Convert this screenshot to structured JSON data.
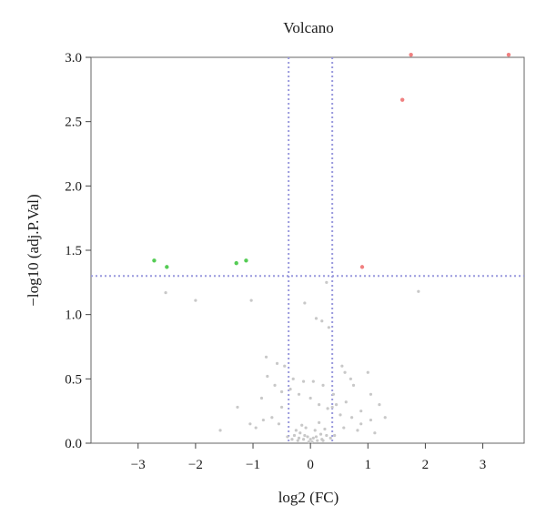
{
  "chart_data": {
    "type": "scatter",
    "title": "Volcano",
    "xlabel": "log2 (FC)",
    "ylabel": "−log10 (adj.P.Val)",
    "xlim": [
      -3.82,
      3.72
    ],
    "ylim": [
      0,
      3.0
    ],
    "x_ticks": [
      -3,
      -2,
      -1,
      0,
      1,
      2,
      3
    ],
    "x_tick_labels": [
      "−3",
      "−2",
      "−1",
      "0",
      "1",
      "2",
      "3"
    ],
    "y_ticks": [
      0,
      0.5,
      1.0,
      1.5,
      2.0,
      2.5,
      3.0
    ],
    "y_tick_labels": [
      "0.0",
      "0.5",
      "1.0",
      "1.5",
      "2.0",
      "2.5",
      "3.0"
    ],
    "thresholds": {
      "x": [
        -0.38,
        0.38
      ],
      "y": 1.3
    },
    "colors": {
      "up": "#f08080",
      "down": "#55cc55",
      "ns": "#c8c8c8",
      "threshold": "#9999dd"
    },
    "series": [
      {
        "group": "up",
        "x": [
          1.75,
          3.45,
          1.6,
          0.9
        ],
        "y": [
          3.02,
          3.02,
          2.67,
          1.37
        ]
      },
      {
        "group": "down",
        "x": [
          -2.72,
          -2.5,
          -1.29,
          -1.12
        ],
        "y": [
          1.42,
          1.37,
          1.4,
          1.42
        ]
      },
      {
        "group": "ns",
        "x": [
          -2.52,
          -2.0,
          -1.03,
          -0.77,
          -0.58,
          -0.45,
          -0.75,
          -0.62,
          -0.5,
          -0.85,
          -1.27,
          -1.57,
          -1.05,
          -0.3,
          -0.12,
          0.05,
          0.22,
          0.28,
          -0.1,
          0.1,
          0.2,
          0.32,
          0.55,
          0.6,
          0.7,
          0.75,
          1.0,
          1.05,
          1.2,
          1.3,
          1.88,
          -0.2,
          0.0,
          0.15,
          -0.35,
          0.4,
          0.45,
          0.88,
          1.05,
          -0.5,
          0.3,
          0.52,
          0.72,
          0.88,
          -0.67,
          -0.82,
          -0.95,
          0.62,
          0.38,
          -0.55,
          0.58,
          0.82,
          1.12,
          -0.08,
          0.08,
          -0.18,
          0.18,
          -0.28,
          0.28,
          -0.05,
          0.05,
          0.0,
          -0.12,
          0.12,
          -0.22,
          0.22,
          -0.32,
          0.35,
          -0.4,
          0.42,
          -0.15,
          0.15,
          -0.25,
          0.25,
          -0.03,
          0.03,
          -0.1,
          0.1,
          -0.2,
          0.2
        ],
        "y": [
          1.17,
          1.11,
          1.11,
          0.67,
          0.62,
          0.6,
          0.52,
          0.45,
          0.4,
          0.35,
          0.28,
          0.1,
          0.15,
          0.5,
          0.48,
          0.48,
          0.45,
          1.25,
          1.09,
          0.97,
          0.95,
          0.9,
          0.6,
          0.55,
          0.5,
          0.45,
          0.55,
          0.38,
          0.3,
          0.2,
          1.18,
          0.38,
          0.35,
          0.3,
          0.42,
          0.38,
          0.3,
          0.25,
          0.18,
          0.28,
          0.27,
          0.22,
          0.2,
          0.15,
          0.2,
          0.18,
          0.12,
          0.32,
          0.28,
          0.15,
          0.12,
          0.1,
          0.08,
          0.12,
          0.1,
          0.08,
          0.07,
          0.06,
          0.06,
          0.05,
          0.04,
          0.03,
          0.03,
          0.02,
          0.02,
          0.02,
          0.03,
          0.04,
          0.05,
          0.06,
          0.14,
          0.16,
          0.1,
          0.11,
          0.01,
          0.01,
          0.06,
          0.05,
          0.04,
          0.03
        ]
      }
    ]
  }
}
